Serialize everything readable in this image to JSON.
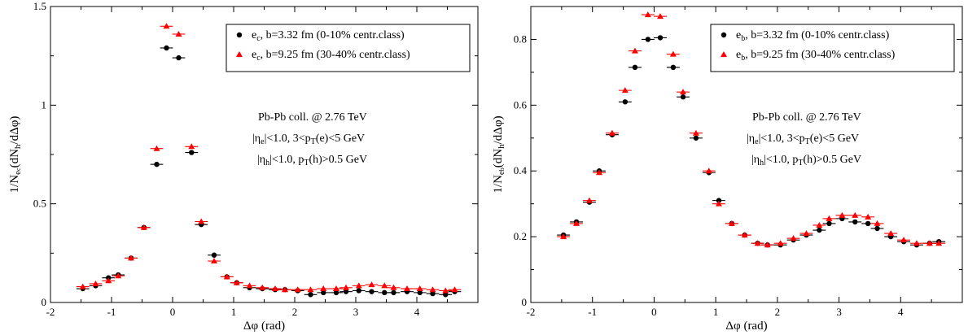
{
  "chart_data": [
    {
      "type": "scatter",
      "xlabel": "Δφ (rad)",
      "ylabel_main": "1/N",
      "ylabel_sub1": "e",
      "ylabel_sub2": "c",
      "ylabel_mid": "(dN",
      "ylabel_sub3": "h",
      "ylabel_end": "/dΔφ)",
      "xlim": [
        -2,
        5
      ],
      "ylim": [
        0,
        1.5
      ],
      "xticks": [
        -2,
        -1,
        0,
        1,
        2,
        3,
        4,
        5
      ],
      "xtick_labels": [
        "-2",
        "-1",
        "0",
        "1",
        "2",
        "3",
        "4",
        ""
      ],
      "yticks": [
        0,
        0.5,
        1,
        1.5
      ],
      "ytick_labels": [
        "0",
        "0.5",
        "1",
        "1.5"
      ],
      "legend_position": "top-right",
      "annotations": [
        {
          "parts": [
            {
              "t": "Pb-Pb coll. @ 2.76 TeV"
            }
          ]
        },
        {
          "parts": [
            {
              "t": "|η"
            },
            {
              "t": "e",
              "sub": true
            },
            {
              "t": "|<1.0,  3<p"
            },
            {
              "t": "T",
              "sub": true
            },
            {
              "t": "(e)<5 GeV"
            }
          ]
        },
        {
          "parts": [
            {
              "t": "|η"
            },
            {
              "t": "h",
              "sub": true
            },
            {
              "t": "|<1.0,  p"
            },
            {
              "t": "T",
              "sub": true
            },
            {
              "t": "(h)>0.5 GeV"
            }
          ]
        }
      ],
      "series": [
        {
          "name_main": "e",
          "name_sub": "c",
          "name_rest": ",  b=3.32 fm (0-10% centr.class)",
          "marker": "circle",
          "color": "#000000",
          "x": [
            -1.47,
            -1.26,
            -1.05,
            -0.89,
            -0.68,
            -0.47,
            -0.26,
            -0.1,
            0.1,
            0.31,
            0.47,
            0.68,
            0.89,
            1.05,
            1.26,
            1.47,
            1.68,
            1.84,
            2.05,
            2.26,
            2.47,
            2.68,
            2.84,
            3.05,
            3.26,
            3.47,
            3.62,
            3.84,
            4.05,
            4.26,
            4.47,
            4.62
          ],
          "y": [
            0.07,
            0.085,
            0.125,
            0.14,
            0.225,
            0.38,
            0.7,
            1.29,
            1.24,
            0.76,
            0.395,
            0.24,
            0.13,
            0.1,
            0.075,
            0.07,
            0.065,
            0.065,
            0.06,
            0.04,
            0.05,
            0.05,
            0.055,
            0.06,
            0.055,
            0.05,
            0.05,
            0.055,
            0.05,
            0.045,
            0.04,
            0.055
          ]
        },
        {
          "name_main": "e",
          "name_sub": "c",
          "name_rest": ",  b=9.25 fm (30-40% centr.class)",
          "marker": "triangle",
          "color": "#ff0000",
          "x": [
            -1.47,
            -1.26,
            -1.05,
            -0.89,
            -0.68,
            -0.47,
            -0.26,
            -0.1,
            0.1,
            0.31,
            0.47,
            0.68,
            0.89,
            1.05,
            1.26,
            1.47,
            1.68,
            1.84,
            2.05,
            2.26,
            2.47,
            2.68,
            2.84,
            3.05,
            3.26,
            3.47,
            3.62,
            3.84,
            4.05,
            4.26,
            4.47,
            4.62
          ],
          "y": [
            0.08,
            0.095,
            0.11,
            0.135,
            0.225,
            0.38,
            0.78,
            1.4,
            1.36,
            0.79,
            0.41,
            0.21,
            0.13,
            0.1,
            0.085,
            0.075,
            0.07,
            0.065,
            0.065,
            0.065,
            0.07,
            0.07,
            0.075,
            0.085,
            0.09,
            0.085,
            0.075,
            0.07,
            0.07,
            0.065,
            0.06,
            0.065
          ]
        }
      ]
    },
    {
      "type": "scatter",
      "xlabel": "Δφ (rad)",
      "ylabel_main": "1/N",
      "ylabel_sub1": "e",
      "ylabel_sub2": "b",
      "ylabel_mid": "(dN",
      "ylabel_sub3": "h",
      "ylabel_end": "/dΔφ)",
      "xlim": [
        -2,
        5
      ],
      "ylim": [
        0,
        0.9
      ],
      "xticks": [
        -2,
        -1,
        0,
        1,
        2,
        3,
        4,
        5
      ],
      "xtick_labels": [
        "-2",
        "-1",
        "0",
        "1",
        "2",
        "3",
        "4",
        ""
      ],
      "yticks": [
        0,
        0.2,
        0.4,
        0.6,
        0.8
      ],
      "ytick_labels": [
        "0",
        "0.2",
        "0.4",
        "0.6",
        "0.8"
      ],
      "legend_position": "top-right",
      "annotations": [
        {
          "parts": [
            {
              "t": "Pb-Pb coll. @ 2.76 TeV"
            }
          ]
        },
        {
          "parts": [
            {
              "t": "|η"
            },
            {
              "t": "e",
              "sub": true
            },
            {
              "t": "|<1.0,  3<p"
            },
            {
              "t": "T",
              "sub": true
            },
            {
              "t": "(e)<5 GeV"
            }
          ]
        },
        {
          "parts": [
            {
              "t": "|η"
            },
            {
              "t": "h",
              "sub": true
            },
            {
              "t": "|<1.0,  p"
            },
            {
              "t": "T",
              "sub": true
            },
            {
              "t": "(h)>0.5 GeV"
            }
          ]
        }
      ],
      "series": [
        {
          "name_main": "e",
          "name_sub": "b",
          "name_rest": ",  b=3.32 fm (0-10% centr.class)",
          "marker": "circle",
          "color": "#000000",
          "x": [
            -1.47,
            -1.26,
            -1.05,
            -0.89,
            -0.68,
            -0.47,
            -0.31,
            -0.1,
            0.1,
            0.31,
            0.47,
            0.68,
            0.89,
            1.05,
            1.26,
            1.47,
            1.68,
            1.84,
            2.05,
            2.26,
            2.47,
            2.68,
            2.84,
            3.05,
            3.26,
            3.47,
            3.62,
            3.84,
            4.05,
            4.26,
            4.47,
            4.62
          ],
          "y": [
            0.205,
            0.245,
            0.305,
            0.4,
            0.51,
            0.61,
            0.715,
            0.8,
            0.805,
            0.715,
            0.625,
            0.5,
            0.395,
            0.31,
            0.24,
            0.205,
            0.18,
            0.175,
            0.175,
            0.19,
            0.205,
            0.22,
            0.24,
            0.255,
            0.245,
            0.24,
            0.225,
            0.2,
            0.185,
            0.175,
            0.18,
            0.185
          ]
        },
        {
          "name_main": "e",
          "name_sub": "b",
          "name_rest": ",  b=9.25 fm (30-40% centr.class)",
          "marker": "triangle",
          "color": "#ff0000",
          "x": [
            -1.47,
            -1.26,
            -1.05,
            -0.89,
            -0.68,
            -0.47,
            -0.31,
            -0.1,
            0.1,
            0.31,
            0.47,
            0.68,
            0.89,
            1.05,
            1.26,
            1.47,
            1.68,
            1.84,
            2.05,
            2.26,
            2.47,
            2.68,
            2.84,
            3.05,
            3.26,
            3.47,
            3.62,
            3.84,
            4.05,
            4.26,
            4.47,
            4.62
          ],
          "y": [
            0.2,
            0.24,
            0.31,
            0.395,
            0.515,
            0.645,
            0.765,
            0.875,
            0.87,
            0.755,
            0.64,
            0.515,
            0.4,
            0.3,
            0.24,
            0.205,
            0.18,
            0.175,
            0.18,
            0.195,
            0.21,
            0.235,
            0.255,
            0.265,
            0.265,
            0.26,
            0.24,
            0.21,
            0.19,
            0.18,
            0.18,
            0.18
          ]
        }
      ]
    }
  ]
}
